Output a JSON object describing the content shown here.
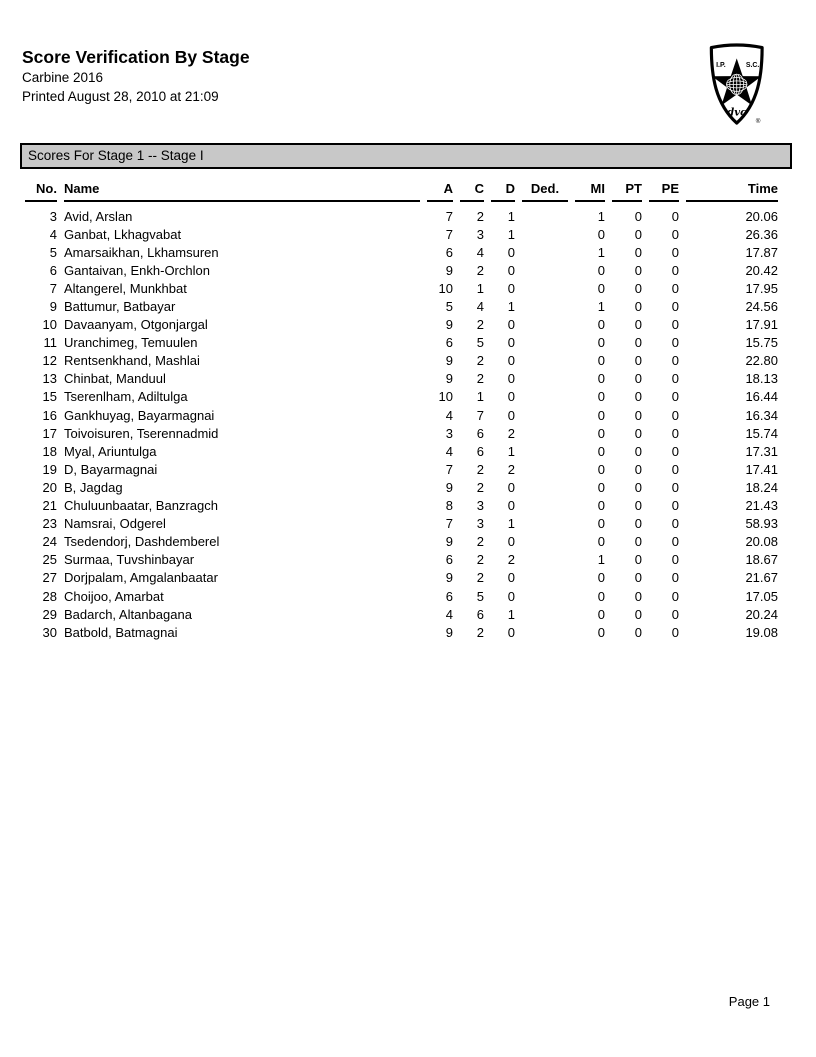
{
  "header": {
    "title": "Score Verification By Stage",
    "match": "Carbine 2016",
    "printed": "Printed August 28, 2010 at 21:09"
  },
  "logo": {
    "left_text": "I.P.",
    "right_text": "S.C.",
    "script_text": "dvc",
    "registered_mark": "®"
  },
  "stage_bar": {
    "label": "Scores For Stage 1 -- Stage I"
  },
  "table": {
    "columns": [
      {
        "key": "no",
        "label": "No."
      },
      {
        "key": "name",
        "label": "Name"
      },
      {
        "key": "a",
        "label": "A"
      },
      {
        "key": "c",
        "label": "C"
      },
      {
        "key": "d",
        "label": "D"
      },
      {
        "key": "ded",
        "label": "Ded."
      },
      {
        "key": "mi",
        "label": "MI"
      },
      {
        "key": "pt",
        "label": "PT"
      },
      {
        "key": "pe",
        "label": "PE"
      },
      {
        "key": "time",
        "label": "Time"
      }
    ],
    "rows": [
      {
        "no": "3",
        "name": "Avid, Arslan",
        "a": "7",
        "c": "2",
        "d": "1",
        "ded": "",
        "mi": "1",
        "pt": "0",
        "pe": "0",
        "time": "20.06"
      },
      {
        "no": "4",
        "name": "Ganbat, Lkhagvabat",
        "a": "7",
        "c": "3",
        "d": "1",
        "ded": "",
        "mi": "0",
        "pt": "0",
        "pe": "0",
        "time": "26.36"
      },
      {
        "no": "5",
        "name": "Amarsaikhan, Lkhamsuren",
        "a": "6",
        "c": "4",
        "d": "0",
        "ded": "",
        "mi": "1",
        "pt": "0",
        "pe": "0",
        "time": "17.87"
      },
      {
        "no": "6",
        "name": "Gantaivan, Enkh-Orchlon",
        "a": "9",
        "c": "2",
        "d": "0",
        "ded": "",
        "mi": "0",
        "pt": "0",
        "pe": "0",
        "time": "20.42"
      },
      {
        "no": "7",
        "name": "Altangerel, Munkhbat",
        "a": "10",
        "c": "1",
        "d": "0",
        "ded": "",
        "mi": "0",
        "pt": "0",
        "pe": "0",
        "time": "17.95"
      },
      {
        "no": "9",
        "name": "Battumur, Batbayar",
        "a": "5",
        "c": "4",
        "d": "1",
        "ded": "",
        "mi": "1",
        "pt": "0",
        "pe": "0",
        "time": "24.56"
      },
      {
        "no": "10",
        "name": "Davaanyam, Otgonjargal",
        "a": "9",
        "c": "2",
        "d": "0",
        "ded": "",
        "mi": "0",
        "pt": "0",
        "pe": "0",
        "time": "17.91"
      },
      {
        "no": "11",
        "name": "Uranchimeg, Temuulen",
        "a": "6",
        "c": "5",
        "d": "0",
        "ded": "",
        "mi": "0",
        "pt": "0",
        "pe": "0",
        "time": "15.75"
      },
      {
        "no": "12",
        "name": "Rentsenkhand, Mashlai",
        "a": "9",
        "c": "2",
        "d": "0",
        "ded": "",
        "mi": "0",
        "pt": "0",
        "pe": "0",
        "time": "22.80"
      },
      {
        "no": "13",
        "name": "Chinbat, Manduul",
        "a": "9",
        "c": "2",
        "d": "0",
        "ded": "",
        "mi": "0",
        "pt": "0",
        "pe": "0",
        "time": "18.13"
      },
      {
        "no": "15",
        "name": "Tserenlham, Adiltulga",
        "a": "10",
        "c": "1",
        "d": "0",
        "ded": "",
        "mi": "0",
        "pt": "0",
        "pe": "0",
        "time": "16.44"
      },
      {
        "no": "16",
        "name": "Gankhuyag, Bayarmagnai",
        "a": "4",
        "c": "7",
        "d": "0",
        "ded": "",
        "mi": "0",
        "pt": "0",
        "pe": "0",
        "time": "16.34"
      },
      {
        "no": "17",
        "name": "Toivoisuren, Tserennadmid",
        "a": "3",
        "c": "6",
        "d": "2",
        "ded": "",
        "mi": "0",
        "pt": "0",
        "pe": "0",
        "time": "15.74"
      },
      {
        "no": "18",
        "name": "Myal, Ariuntulga",
        "a": "4",
        "c": "6",
        "d": "1",
        "ded": "",
        "mi": "0",
        "pt": "0",
        "pe": "0",
        "time": "17.31"
      },
      {
        "no": "19",
        "name": "D, Bayarmagnai",
        "a": "7",
        "c": "2",
        "d": "2",
        "ded": "",
        "mi": "0",
        "pt": "0",
        "pe": "0",
        "time": "17.41"
      },
      {
        "no": "20",
        "name": "B, Jagdag",
        "a": "9",
        "c": "2",
        "d": "0",
        "ded": "",
        "mi": "0",
        "pt": "0",
        "pe": "0",
        "time": "18.24"
      },
      {
        "no": "21",
        "name": "Chuluunbaatar, Banzragch",
        "a": "8",
        "c": "3",
        "d": "0",
        "ded": "",
        "mi": "0",
        "pt": "0",
        "pe": "0",
        "time": "21.43"
      },
      {
        "no": "23",
        "name": "Namsrai, Odgerel",
        "a": "7",
        "c": "3",
        "d": "1",
        "ded": "",
        "mi": "0",
        "pt": "0",
        "pe": "0",
        "time": "58.93"
      },
      {
        "no": "24",
        "name": "Tsedendorj, Dashdemberel",
        "a": "9",
        "c": "2",
        "d": "0",
        "ded": "",
        "mi": "0",
        "pt": "0",
        "pe": "0",
        "time": "20.08"
      },
      {
        "no": "25",
        "name": "Surmaa, Tuvshinbayar",
        "a": "6",
        "c": "2",
        "d": "2",
        "ded": "",
        "mi": "1",
        "pt": "0",
        "pe": "0",
        "time": "18.67"
      },
      {
        "no": "27",
        "name": "Dorjpalam, Amgalanbaatar",
        "a": "9",
        "c": "2",
        "d": "0",
        "ded": "",
        "mi": "0",
        "pt": "0",
        "pe": "0",
        "time": "21.67"
      },
      {
        "no": "28",
        "name": "Choijoo, Amarbat",
        "a": "6",
        "c": "5",
        "d": "0",
        "ded": "",
        "mi": "0",
        "pt": "0",
        "pe": "0",
        "time": "17.05"
      },
      {
        "no": "29",
        "name": "Badarch, Altanbagana",
        "a": "4",
        "c": "6",
        "d": "1",
        "ded": "",
        "mi": "0",
        "pt": "0",
        "pe": "0",
        "time": "20.24"
      },
      {
        "no": "30",
        "name": "Batbold, Batmagnai",
        "a": "9",
        "c": "2",
        "d": "0",
        "ded": "",
        "mi": "0",
        "pt": "0",
        "pe": "0",
        "time": "19.08"
      }
    ]
  },
  "footer": {
    "page_number": "Page 1"
  },
  "colors": {
    "bar_background": "#c8c8c8",
    "text": "#000000",
    "page_background": "#ffffff"
  }
}
